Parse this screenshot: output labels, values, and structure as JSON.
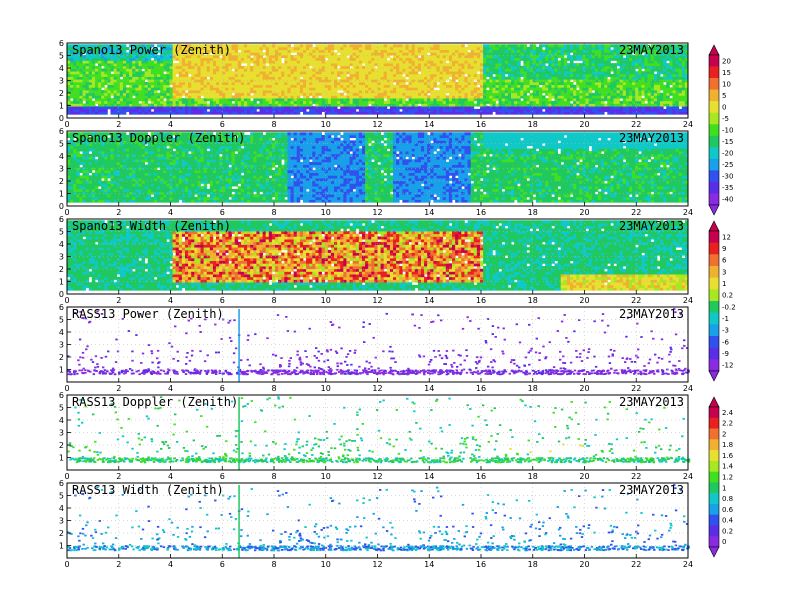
{
  "colors": {
    "ramp": [
      "#8a2be2",
      "#5a2ee8",
      "#3050f0",
      "#18a0e8",
      "#10c8c8",
      "#20c860",
      "#40e020",
      "#a8e820",
      "#e8e030",
      "#f0b030",
      "#f07030",
      "#e82020",
      "#c80050"
    ],
    "frame": "#000000",
    "grid": "#b0b0b0"
  },
  "chart_data": [
    {
      "type": "heatmap",
      "title": "Spano13 Power (Zenith)",
      "date_label": "23MAY2013",
      "xlim": [
        0,
        24
      ],
      "ylim": [
        0,
        6
      ],
      "xticks": [
        "0",
        "2",
        "4",
        "6",
        "8",
        "10",
        "12",
        "14",
        "16",
        "18",
        "20",
        "22",
        "24"
      ],
      "yticks": [
        "0",
        "1",
        "2",
        "3",
        "4",
        "5",
        "6"
      ],
      "colorbar": [
        "20",
        "15",
        "10",
        "5",
        "0",
        "-5",
        "-10",
        "-15",
        "-20",
        "-25",
        "-30",
        "-35",
        "-40"
      ]
    },
    {
      "type": "heatmap",
      "title": "Spano13 Doppler (Zenith)",
      "date_label": "23MAY2013",
      "xlim": [
        0,
        24
      ],
      "ylim": [
        0,
        6
      ],
      "xticks": [
        "0",
        "2",
        "4",
        "6",
        "8",
        "10",
        "12",
        "14",
        "16",
        "18",
        "20",
        "22",
        "24"
      ],
      "yticks": [
        "0",
        "1",
        "2",
        "3",
        "4",
        "5",
        "6"
      ],
      "colorbar": []
    },
    {
      "type": "heatmap",
      "title": "Spano13 Width (Zenith)",
      "date_label": "23MAY2013",
      "xlim": [
        0,
        24
      ],
      "ylim": [
        0,
        6
      ],
      "xticks": [
        "0",
        "2",
        "4",
        "6",
        "8",
        "10",
        "12",
        "14",
        "16",
        "18",
        "20",
        "22",
        "24"
      ],
      "yticks": [
        "0",
        "1",
        "2",
        "3",
        "4",
        "5",
        "6"
      ],
      "colorbar": [
        "12",
        "9",
        "6",
        "3",
        "1",
        "0.2",
        "-0.2",
        "-1",
        "-3",
        "-6",
        "-9",
        "-12"
      ]
    },
    {
      "type": "heatmap",
      "title": "RASS13 Power (Zenith)",
      "date_label": "23MAY2013",
      "xlim": [
        0,
        24
      ],
      "ylim": [
        0,
        6
      ],
      "xticks": [
        "0",
        "2",
        "4",
        "6",
        "8",
        "10",
        "12",
        "14",
        "16",
        "18",
        "20",
        "22",
        "24"
      ],
      "yticks": [
        "1",
        "2",
        "3",
        "4",
        "5",
        "6"
      ],
      "colorbar": []
    },
    {
      "type": "heatmap",
      "title": "RASS13 Doppler (Zenith)",
      "date_label": "23MAY2013",
      "xlim": [
        0,
        24
      ],
      "ylim": [
        0,
        6
      ],
      "xticks": [
        "0",
        "2",
        "4",
        "6",
        "8",
        "10",
        "12",
        "14",
        "16",
        "18",
        "20",
        "22",
        "24"
      ],
      "yticks": [
        "1",
        "2",
        "3",
        "4",
        "5",
        "6"
      ],
      "colorbar": [
        "2.4",
        "2.2",
        "2",
        "1.8",
        "1.6",
        "1.4",
        "1.2",
        "1",
        "0.8",
        "0.6",
        "0.4",
        "0.2",
        "0"
      ]
    },
    {
      "type": "heatmap",
      "title": "RASS13 Width (Zenith)",
      "date_label": "23MAY2013",
      "xlim": [
        0,
        24
      ],
      "ylim": [
        0,
        6
      ],
      "xticks": [
        "0",
        "2",
        "4",
        "6",
        "8",
        "10",
        "12",
        "14",
        "16",
        "18",
        "20",
        "22",
        "24"
      ],
      "yticks": [
        "1",
        "2",
        "3",
        "4",
        "5",
        "6"
      ],
      "colorbar": []
    }
  ]
}
